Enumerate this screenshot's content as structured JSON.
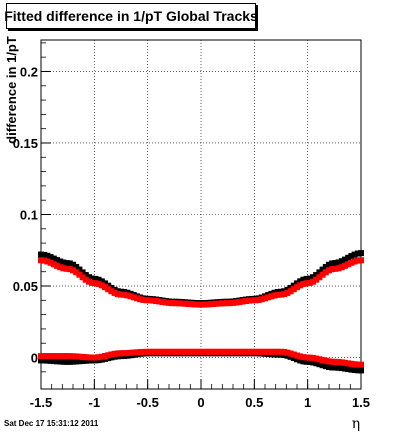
{
  "chart_data": {
    "type": "scatter",
    "title": "Fitted difference in 1/pT  Global Tracks",
    "xlabel": "η",
    "ylabel": "difference in 1/pT",
    "xlim": [
      -1.5,
      1.5
    ],
    "ylim": [
      -0.022,
      0.222
    ],
    "x_ticks": [
      "-1.5",
      "-1",
      "-0.5",
      "0",
      "0.5",
      "1",
      "1.5"
    ],
    "y_ticks": [
      "0",
      "0.05",
      "0.1",
      "0.15",
      "0.2"
    ],
    "grid": true,
    "series": [
      {
        "color": "#000000",
        "x": [
          -1.5,
          -1.25,
          -1.0,
          -0.75,
          -0.5,
          -0.25,
          0.0,
          0.25,
          0.5,
          0.75,
          1.0,
          1.25,
          1.5
        ],
        "values": [
          0.072,
          0.066,
          0.055,
          0.046,
          0.041,
          0.039,
          0.038,
          0.039,
          0.041,
          0.046,
          0.055,
          0.066,
          0.073
        ]
      },
      {
        "color": "#ff0000",
        "x": [
          -1.5,
          -1.25,
          -1.0,
          -0.75,
          -0.5,
          -0.25,
          0.0,
          0.25,
          0.5,
          0.75,
          1.0,
          1.25,
          1.5
        ],
        "values": [
          0.068,
          0.062,
          0.052,
          0.044,
          0.04,
          0.038,
          0.037,
          0.038,
          0.04,
          0.044,
          0.052,
          0.062,
          0.068
        ]
      },
      {
        "color": "#000000",
        "x": [
          -1.5,
          -1.25,
          -1.0,
          -0.75,
          -0.5,
          -0.25,
          0.0,
          0.25,
          0.5,
          0.75,
          1.0,
          1.25,
          1.5
        ],
        "values": [
          -0.002,
          -0.003,
          -0.002,
          0.001,
          0.003,
          0.003,
          0.003,
          0.003,
          0.003,
          0.002,
          -0.003,
          -0.007,
          -0.009
        ]
      },
      {
        "color": "#ff0000",
        "x": [
          -1.5,
          -1.25,
          -1.0,
          -0.75,
          -0.5,
          -0.25,
          0.0,
          0.25,
          0.5,
          0.75,
          1.0,
          1.25,
          1.5
        ],
        "values": [
          0.001,
          0.001,
          0.0,
          0.003,
          0.004,
          0.004,
          0.004,
          0.004,
          0.004,
          0.004,
          0.0,
          -0.003,
          -0.005
        ]
      }
    ]
  },
  "timestamp": "Sat Dec 17 15:31:12 2011"
}
